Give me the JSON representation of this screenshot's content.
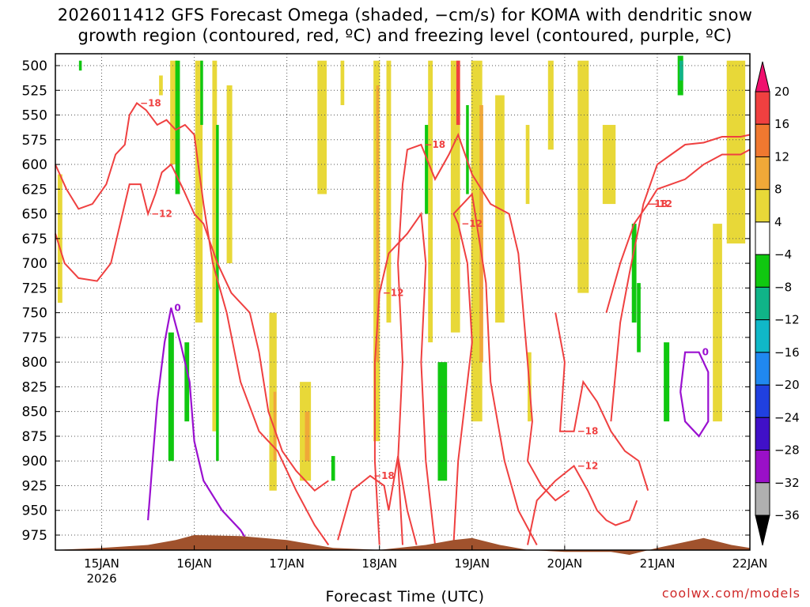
{
  "title_line1": "2026011412 GFS Forecast Omega (shaded, −cm/s) for KOMA with dendritic snow",
  "title_line2": "growth region (contoured, red, ºC) and freezing level (contoured, purple, ºC)",
  "xlabel": "Forecast Time (UTC)",
  "credit": "coolwx.com/models",
  "colors": {
    "frame": "#000000",
    "grid": "#555555",
    "ground": "#a0522d",
    "dgz": "#ef4040",
    "freezing": "#9a10d0"
  },
  "chart_data": {
    "type": "heatmap",
    "x_range": [
      "2026-01-14 12",
      "2026-01-22 00"
    ],
    "y_range": [
      500,
      995
    ],
    "x_ticks": [
      {
        "label": "15JAN",
        "sub": "2026",
        "day": 15
      },
      {
        "label": "16JAN",
        "sub": "",
        "day": 16
      },
      {
        "label": "17JAN",
        "sub": "",
        "day": 17
      },
      {
        "label": "18JAN",
        "sub": "",
        "day": 18
      },
      {
        "label": "19JAN",
        "sub": "",
        "day": 19
      },
      {
        "label": "20JAN",
        "sub": "",
        "day": 20
      },
      {
        "label": "21JAN",
        "sub": "",
        "day": 21
      },
      {
        "label": "22JAN",
        "sub": "",
        "day": 22
      }
    ],
    "y_ticks": [
      500,
      525,
      550,
      575,
      600,
      625,
      650,
      675,
      700,
      725,
      750,
      775,
      800,
      825,
      850,
      875,
      900,
      925,
      950,
      975
    ],
    "grid": true,
    "colorbar": {
      "labels": [
        "20",
        "16",
        "12",
        "8",
        "4",
        "−4",
        "−8",
        "−12",
        "−16",
        "−20",
        "−24",
        "−28",
        "−32",
        "−36"
      ],
      "colors": [
        "#f0106e",
        "#f04040",
        "#f07830",
        "#f0a838",
        "#e8d838",
        "#ffffff",
        "#10c810",
        "#10b488",
        "#10b8c8",
        "#2088f0",
        "#2040e0",
        "#4010c8",
        "#9a10c8",
        "#b0b0b0",
        "#000000"
      ]
    },
    "omega_shading": [
      {
        "t": 14.55,
        "w": 0.05,
        "p1": 610,
        "p2": 740,
        "color": "#e8d838"
      },
      {
        "t": 14.77,
        "w": 0.03,
        "p1": 495,
        "p2": 505,
        "color": "#10c810"
      },
      {
        "t": 15.64,
        "w": 0.04,
        "p1": 510,
        "p2": 530,
        "color": "#e8d838"
      },
      {
        "t": 15.78,
        "w": 0.08,
        "p1": 495,
        "p2": 600,
        "color": "#e8d838"
      },
      {
        "t": 15.82,
        "w": 0.05,
        "p1": 495,
        "p2": 630,
        "color": "#10c810"
      },
      {
        "t": 15.75,
        "w": 0.06,
        "p1": 770,
        "p2": 900,
        "color": "#10c810"
      },
      {
        "t": 15.92,
        "w": 0.05,
        "p1": 780,
        "p2": 860,
        "color": "#10c810"
      },
      {
        "t": 16.05,
        "w": 0.08,
        "p1": 495,
        "p2": 760,
        "color": "#e8d838"
      },
      {
        "t": 16.08,
        "w": 0.03,
        "p1": 495,
        "p2": 560,
        "color": "#10c810"
      },
      {
        "t": 16.22,
        "w": 0.05,
        "p1": 495,
        "p2": 870,
        "color": "#e8d838"
      },
      {
        "t": 16.25,
        "w": 0.03,
        "p1": 560,
        "p2": 900,
        "color": "#10c810"
      },
      {
        "t": 16.38,
        "w": 0.06,
        "p1": 520,
        "p2": 700,
        "color": "#e8d838"
      },
      {
        "t": 16.85,
        "w": 0.08,
        "p1": 750,
        "p2": 930,
        "color": "#e8d838"
      },
      {
        "t": 16.87,
        "w": 0.03,
        "p1": 830,
        "p2": 900,
        "color": "#f0a838"
      },
      {
        "t": 17.2,
        "w": 0.12,
        "p1": 820,
        "p2": 920,
        "color": "#e8d838"
      },
      {
        "t": 17.22,
        "w": 0.05,
        "p1": 850,
        "p2": 900,
        "color": "#f0a838"
      },
      {
        "t": 17.5,
        "w": 0.04,
        "p1": 895,
        "p2": 920,
        "color": "#10c810"
      },
      {
        "t": 17.38,
        "w": 0.1,
        "p1": 495,
        "p2": 630,
        "color": "#e8d838"
      },
      {
        "t": 17.6,
        "w": 0.04,
        "p1": 495,
        "p2": 540,
        "color": "#e8d838"
      },
      {
        "t": 17.97,
        "w": 0.07,
        "p1": 495,
        "p2": 880,
        "color": "#e8d838"
      },
      {
        "t": 17.98,
        "w": 0.03,
        "p1": 520,
        "p2": 800,
        "color": "#f0a838"
      },
      {
        "t": 18.1,
        "w": 0.05,
        "p1": 495,
        "p2": 760,
        "color": "#e8d838"
      },
      {
        "t": 18.52,
        "w": 0.06,
        "p1": 560,
        "p2": 650,
        "color": "#10c810"
      },
      {
        "t": 18.55,
        "w": 0.05,
        "p1": 495,
        "p2": 780,
        "color": "#e8d838"
      },
      {
        "t": 18.68,
        "w": 0.1,
        "p1": 800,
        "p2": 920,
        "color": "#10c810"
      },
      {
        "t": 18.82,
        "w": 0.1,
        "p1": 495,
        "p2": 770,
        "color": "#e8d838"
      },
      {
        "t": 18.85,
        "w": 0.04,
        "p1": 495,
        "p2": 560,
        "color": "#f04040"
      },
      {
        "t": 18.95,
        "w": 0.03,
        "p1": 540,
        "p2": 630,
        "color": "#10c810"
      },
      {
        "t": 19.05,
        "w": 0.12,
        "p1": 495,
        "p2": 860,
        "color": "#e8d838"
      },
      {
        "t": 19.1,
        "w": 0.04,
        "p1": 540,
        "p2": 800,
        "color": "#f0a838"
      },
      {
        "t": 19.3,
        "w": 0.1,
        "p1": 530,
        "p2": 760,
        "color": "#e8d838"
      },
      {
        "t": 19.6,
        "w": 0.04,
        "p1": 560,
        "p2": 640,
        "color": "#e8d838"
      },
      {
        "t": 19.62,
        "w": 0.04,
        "p1": 790,
        "p2": 860,
        "color": "#e8d838"
      },
      {
        "t": 19.85,
        "w": 0.06,
        "p1": 495,
        "p2": 585,
        "color": "#e8d838"
      },
      {
        "t": 20.2,
        "w": 0.12,
        "p1": 495,
        "p2": 730,
        "color": "#e8d838"
      },
      {
        "t": 20.48,
        "w": 0.14,
        "p1": 560,
        "p2": 640,
        "color": "#e8d838"
      },
      {
        "t": 20.75,
        "w": 0.05,
        "p1": 660,
        "p2": 760,
        "color": "#10c810"
      },
      {
        "t": 20.8,
        "w": 0.04,
        "p1": 720,
        "p2": 790,
        "color": "#10c810"
      },
      {
        "t": 21.1,
        "w": 0.06,
        "p1": 780,
        "p2": 860,
        "color": "#10c810"
      },
      {
        "t": 21.25,
        "w": 0.06,
        "p1": 490,
        "p2": 530,
        "color": "#10c810"
      },
      {
        "t": 21.26,
        "w": 0.04,
        "p1": 495,
        "p2": 515,
        "color": "#10b488"
      },
      {
        "t": 21.65,
        "w": 0.1,
        "p1": 660,
        "p2": 860,
        "color": "#e8d838"
      },
      {
        "t": 21.85,
        "w": 0.2,
        "p1": 495,
        "p2": 680,
        "color": "#e8d838"
      }
    ],
    "dgz_contours": [
      {
        "label": "−18",
        "points": [
          [
            14.5,
            600
          ],
          [
            14.62,
            625
          ],
          [
            14.75,
            645
          ],
          [
            14.9,
            640
          ],
          [
            15.05,
            620
          ],
          [
            15.15,
            590
          ],
          [
            15.25,
            580
          ],
          [
            15.3,
            550
          ],
          [
            15.38,
            538
          ],
          [
            15.48,
            545
          ],
          [
            15.6,
            560
          ],
          [
            15.7,
            555
          ],
          [
            15.8,
            565
          ],
          [
            15.9,
            560
          ],
          [
            16.0,
            570
          ],
          [
            16.1,
            640
          ],
          [
            16.2,
            700
          ],
          [
            16.35,
            750
          ],
          [
            16.5,
            820
          ],
          [
            16.7,
            870
          ],
          [
            16.9,
            890
          ],
          [
            17.1,
            930
          ],
          [
            17.3,
            965
          ],
          [
            17.45,
            985
          ]
        ]
      },
      {
        "label": "−12",
        "points": [
          [
            14.5,
            670
          ],
          [
            14.6,
            700
          ],
          [
            14.75,
            715
          ],
          [
            14.95,
            718
          ],
          [
            15.1,
            700
          ],
          [
            15.2,
            660
          ],
          [
            15.3,
            620
          ],
          [
            15.42,
            620
          ],
          [
            15.5,
            650
          ],
          [
            15.58,
            630
          ],
          [
            15.65,
            608
          ],
          [
            15.75,
            600
          ],
          [
            15.88,
            625
          ],
          [
            16.0,
            650
          ],
          [
            16.1,
            660
          ],
          [
            16.25,
            700
          ],
          [
            16.4,
            730
          ],
          [
            16.6,
            750
          ],
          [
            16.7,
            790
          ],
          [
            16.8,
            850
          ],
          [
            16.95,
            890
          ],
          [
            17.1,
            910
          ],
          [
            17.3,
            930
          ],
          [
            17.45,
            920
          ]
        ]
      },
      {
        "label": "−18",
        "points": [
          [
            17.55,
            980
          ],
          [
            17.7,
            930
          ],
          [
            17.9,
            915
          ],
          [
            18.05,
            925
          ],
          [
            18.1,
            950
          ],
          [
            18.2,
            895
          ],
          [
            18.3,
            950
          ],
          [
            18.4,
            985
          ]
        ]
      },
      {
        "label": "−12",
        "points": [
          [
            18.0,
            985
          ],
          [
            17.95,
            900
          ],
          [
            17.95,
            800
          ],
          [
            18.0,
            730
          ],
          [
            18.1,
            690
          ],
          [
            18.3,
            670
          ],
          [
            18.45,
            650
          ],
          [
            18.5,
            700
          ],
          [
            18.45,
            800
          ],
          [
            18.5,
            900
          ],
          [
            18.6,
            985
          ]
        ]
      },
      {
        "label": "−18",
        "points": [
          [
            18.25,
            985
          ],
          [
            18.2,
            900
          ],
          [
            18.25,
            800
          ],
          [
            18.2,
            700
          ],
          [
            18.25,
            620
          ],
          [
            18.3,
            585
          ],
          [
            18.45,
            580
          ],
          [
            18.6,
            615
          ],
          [
            18.75,
            590
          ],
          [
            18.85,
            570
          ],
          [
            19.0,
            610
          ],
          [
            19.2,
            640
          ],
          [
            19.4,
            650
          ],
          [
            19.5,
            690
          ],
          [
            19.6,
            800
          ],
          [
            19.65,
            860
          ],
          [
            19.6,
            900
          ],
          [
            19.75,
            925
          ],
          [
            19.9,
            940
          ],
          [
            20.05,
            930
          ]
        ]
      },
      {
        "label": "−12",
        "points": [
          [
            18.8,
            985
          ],
          [
            18.85,
            900
          ],
          [
            19.0,
            780
          ],
          [
            18.95,
            700
          ],
          [
            18.85,
            660
          ],
          [
            18.8,
            650
          ],
          [
            19.0,
            630
          ],
          [
            19.15,
            720
          ],
          [
            19.2,
            820
          ],
          [
            19.35,
            900
          ],
          [
            19.5,
            950
          ],
          [
            19.7,
            985
          ]
        ]
      },
      {
        "label": "−18",
        "points": [
          [
            19.9,
            750
          ],
          [
            20.0,
            800
          ],
          [
            19.95,
            870
          ],
          [
            20.1,
            870
          ],
          [
            20.2,
            820
          ],
          [
            20.35,
            840
          ],
          [
            20.5,
            870
          ],
          [
            20.65,
            890
          ],
          [
            20.8,
            900
          ],
          [
            20.9,
            930
          ]
        ]
      },
      {
        "label": "−12",
        "points": [
          [
            19.6,
            985
          ],
          [
            19.7,
            940
          ],
          [
            19.9,
            920
          ],
          [
            20.1,
            905
          ],
          [
            20.25,
            930
          ],
          [
            20.35,
            950
          ],
          [
            20.45,
            960
          ],
          [
            20.55,
            965
          ],
          [
            20.7,
            960
          ],
          [
            20.78,
            940
          ]
        ]
      },
      {
        "label": "−12",
        "points": [
          [
            20.45,
            750
          ],
          [
            20.6,
            700
          ],
          [
            20.75,
            660
          ],
          [
            20.9,
            640
          ],
          [
            21.0,
            625
          ],
          [
            21.15,
            620
          ],
          [
            21.3,
            615
          ],
          [
            21.5,
            600
          ],
          [
            21.7,
            590
          ],
          [
            21.9,
            590
          ],
          [
            22.0,
            585
          ]
        ]
      },
      {
        "label": "−18",
        "points": [
          [
            20.5,
            860
          ],
          [
            20.6,
            760
          ],
          [
            20.7,
            710
          ],
          [
            20.85,
            640
          ],
          [
            21.0,
            600
          ],
          [
            21.15,
            590
          ],
          [
            21.3,
            580
          ],
          [
            21.5,
            578
          ],
          [
            21.7,
            572
          ],
          [
            21.9,
            572
          ],
          [
            22.0,
            570
          ]
        ]
      }
    ],
    "freezing_contours": [
      {
        "label": "0",
        "points": [
          [
            15.5,
            960
          ],
          [
            15.55,
            900
          ],
          [
            15.6,
            840
          ],
          [
            15.68,
            780
          ],
          [
            15.75,
            745
          ],
          [
            15.85,
            780
          ],
          [
            15.95,
            820
          ],
          [
            16.0,
            880
          ],
          [
            16.1,
            920
          ],
          [
            16.3,
            950
          ],
          [
            16.5,
            970
          ],
          [
            16.6,
            985
          ]
        ]
      },
      {
        "label": "0",
        "points": [
          [
            21.25,
            830
          ],
          [
            21.3,
            790
          ],
          [
            21.45,
            790
          ],
          [
            21.55,
            810
          ],
          [
            21.55,
            860
          ],
          [
            21.45,
            875
          ],
          [
            21.3,
            860
          ],
          [
            21.25,
            830
          ]
        ]
      }
    ],
    "ground": [
      [
        14.5,
        990
      ],
      [
        15.0,
        988
      ],
      [
        15.5,
        985
      ],
      [
        15.8,
        980
      ],
      [
        16.0,
        975
      ],
      [
        16.5,
        976
      ],
      [
        17.0,
        980
      ],
      [
        17.5,
        988
      ],
      [
        18.0,
        990
      ],
      [
        18.5,
        985
      ],
      [
        18.8,
        980
      ],
      [
        19.0,
        978
      ],
      [
        19.3,
        985
      ],
      [
        19.6,
        990
      ],
      [
        20.0,
        992
      ],
      [
        20.5,
        992
      ],
      [
        20.7,
        995
      ],
      [
        21.0,
        988
      ],
      [
        21.3,
        982
      ],
      [
        21.5,
        978
      ],
      [
        21.8,
        985
      ],
      [
        22.0,
        988
      ]
    ]
  }
}
